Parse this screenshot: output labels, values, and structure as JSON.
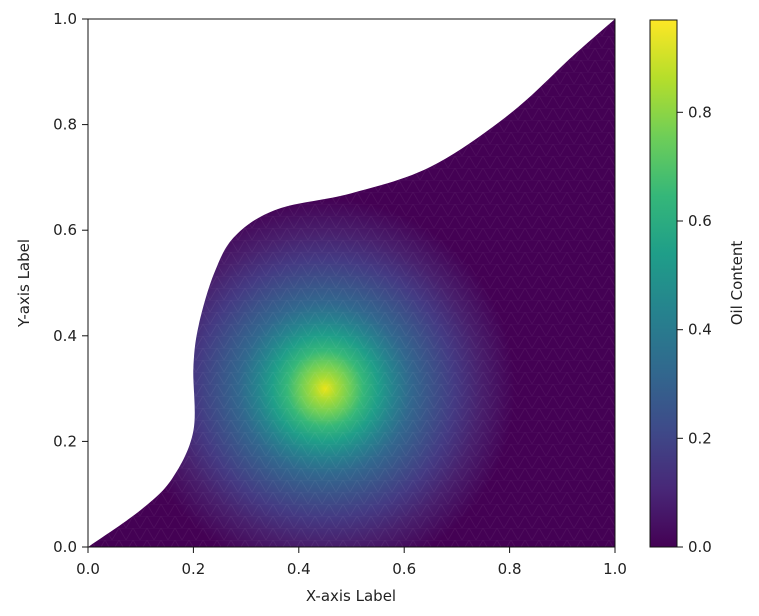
{
  "chart_data": {
    "type": "heatmap",
    "title": "",
    "xlabel": "X-axis Label",
    "ylabel": "Y-axis Label",
    "xlim": [
      0.0,
      1.0
    ],
    "ylim": [
      0.0,
      1.0
    ],
    "x_ticks": [
      "0.0",
      "0.2",
      "0.4",
      "0.6",
      "0.8",
      "1.0"
    ],
    "y_ticks": [
      "0.0",
      "0.2",
      "0.4",
      "0.6",
      "0.8",
      "1.0"
    ],
    "colorbar": {
      "label": "Oil Content",
      "range": [
        0.0,
        0.97
      ],
      "ticks": [
        "0.0",
        "0.2",
        "0.4",
        "0.6",
        "0.8"
      ],
      "colormap": "viridis"
    },
    "field": {
      "description_type": "gaussian",
      "peak_value": 0.95,
      "center": [
        0.45,
        0.3
      ],
      "sigma": [
        0.075,
        0.07
      ]
    },
    "domain_boundary": [
      [
        0.0,
        0.0
      ],
      [
        0.1,
        0.07
      ],
      [
        0.16,
        0.13
      ],
      [
        0.2,
        0.22
      ],
      [
        0.2,
        0.34
      ],
      [
        0.21,
        0.42
      ],
      [
        0.24,
        0.52
      ],
      [
        0.28,
        0.59
      ],
      [
        0.36,
        0.64
      ],
      [
        0.5,
        0.67
      ],
      [
        0.65,
        0.72
      ],
      [
        0.8,
        0.82
      ],
      [
        0.92,
        0.93
      ],
      [
        1.0,
        1.0
      ],
      [
        1.0,
        0.0
      ]
    ],
    "grid": false,
    "legend": "none"
  },
  "colors": {
    "viridis": [
      "#440154",
      "#482878",
      "#3e4a89",
      "#31688e",
      "#26828e",
      "#1f9e89",
      "#35b779",
      "#6ece58",
      "#b5de2b",
      "#fde725"
    ]
  }
}
